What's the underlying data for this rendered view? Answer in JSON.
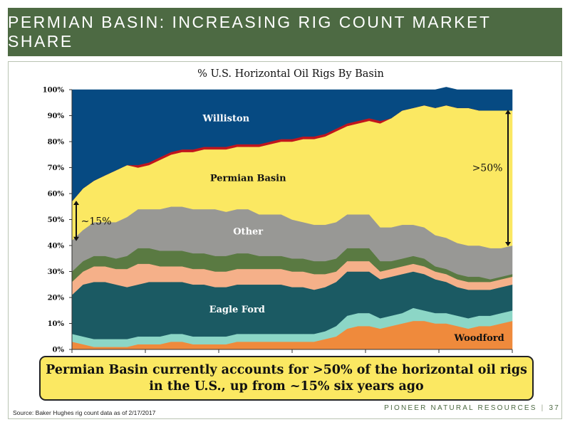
{
  "header": {
    "title": "PERMIAN BASIN: INCREASING RIG COUNT MARKET SHARE"
  },
  "chart_data": {
    "type": "area",
    "stacked": true,
    "title": "% U.S. Horizontal Oil Rigs By Basin",
    "xlabel": "",
    "ylabel": "",
    "ylim": [
      0,
      100
    ],
    "y_tick_labels": [
      "0%",
      "10%",
      "20%",
      "30%",
      "40%",
      "50%",
      "60%",
      "70%",
      "80%",
      "90%",
      "100%"
    ],
    "x_tick_count": 7,
    "x": [
      0,
      1,
      2,
      3,
      4,
      5,
      6,
      7,
      8,
      9,
      10,
      11,
      12,
      13,
      14,
      15,
      16,
      17,
      18,
      19,
      20,
      21,
      22,
      23,
      24,
      25,
      26,
      27,
      28,
      29,
      30,
      31,
      32,
      33,
      34,
      35,
      36,
      37,
      38,
      39,
      40
    ],
    "series": [
      {
        "name": "Woodford",
        "color": "#ef8a3c",
        "values": [
          3,
          2,
          1,
          1,
          1,
          1,
          2,
          2,
          2,
          3,
          3,
          2,
          2,
          2,
          2,
          3,
          3,
          3,
          3,
          3,
          3,
          3,
          3,
          4,
          5,
          8,
          9,
          9,
          8,
          9,
          10,
          11,
          11,
          10,
          10,
          9,
          8,
          9,
          9,
          10,
          11
        ]
      },
      {
        "name": "",
        "color": "#8cd6c6",
        "values": [
          3,
          3,
          3,
          3,
          3,
          3,
          3,
          3,
          3,
          3,
          3,
          3,
          3,
          3,
          3,
          3,
          3,
          3,
          3,
          3,
          3,
          3,
          3,
          3,
          4,
          5,
          5,
          5,
          4,
          4,
          4,
          5,
          4,
          4,
          4,
          4,
          4,
          4,
          4,
          4,
          4
        ]
      },
      {
        "name": "Eagle Ford",
        "color": "#1b5a63",
        "values": [
          15,
          20,
          22,
          22,
          21,
          20,
          20,
          21,
          21,
          20,
          20,
          20,
          20,
          19,
          19,
          19,
          19,
          19,
          19,
          19,
          18,
          18,
          17,
          17,
          17,
          17,
          16,
          16,
          15,
          15,
          15,
          14,
          14,
          13,
          12,
          11,
          11,
          10,
          10,
          10,
          10
        ]
      },
      {
        "name": "",
        "color": "#f5b089",
        "values": [
          5,
          5,
          6,
          6,
          6,
          7,
          8,
          7,
          6,
          6,
          6,
          6,
          6,
          6,
          6,
          6,
          6,
          6,
          6,
          6,
          6,
          6,
          6,
          5,
          4,
          4,
          4,
          4,
          3,
          3,
          3,
          3,
          3,
          3,
          3,
          3,
          3,
          3,
          3,
          3,
          3
        ]
      },
      {
        "name": "",
        "color": "#5a7a42",
        "values": [
          4,
          4,
          4,
          4,
          4,
          5,
          6,
          6,
          6,
          6,
          6,
          6,
          6,
          6,
          6,
          6,
          6,
          5,
          5,
          5,
          5,
          5,
          5,
          5,
          5,
          5,
          5,
          5,
          4,
          3,
          3,
          3,
          3,
          2,
          2,
          2,
          2,
          2,
          1,
          1,
          1
        ]
      },
      {
        "name": "Other",
        "color": "#989895",
        "values": [
          12,
          12,
          13,
          13,
          14,
          15,
          15,
          15,
          16,
          17,
          17,
          17,
          17,
          18,
          17,
          17,
          17,
          16,
          16,
          16,
          15,
          14,
          14,
          14,
          14,
          13,
          13,
          13,
          13,
          13,
          13,
          12,
          12,
          12,
          12,
          12,
          12,
          12,
          12,
          11,
          11
        ]
      },
      {
        "name": "Permian Basin",
        "color": "#fbe862",
        "values": [
          15,
          16,
          16,
          18,
          20,
          20,
          16,
          17,
          19,
          20,
          21,
          22,
          23,
          23,
          24,
          24,
          24,
          26,
          27,
          28,
          30,
          32,
          33,
          34,
          35,
          34,
          35,
          36,
          40,
          42,
          44,
          45,
          47,
          49,
          51,
          52,
          53,
          52,
          53,
          53,
          52
        ]
      },
      {
        "name": "",
        "color": "#c0151d",
        "values": [
          0,
          0,
          0,
          0,
          0,
          0,
          1,
          1,
          1,
          1,
          1,
          1,
          1,
          1,
          1,
          1,
          1,
          1,
          1,
          1,
          1,
          1,
          1,
          1,
          1,
          1,
          1,
          1,
          1,
          0,
          0,
          0,
          0,
          0,
          0,
          0,
          0,
          0,
          0,
          0,
          0
        ]
      },
      {
        "name": "Williston",
        "color": "#064a82",
        "values": [
          43,
          38,
          35,
          33,
          31,
          29,
          29,
          28,
          26,
          24,
          23,
          23,
          22,
          22,
          22,
          21,
          21,
          21,
          20,
          19,
          19,
          18,
          18,
          17,
          15,
          13,
          12,
          11,
          12,
          11,
          8,
          7,
          6,
          7,
          7,
          7,
          7,
          8,
          8,
          8,
          8
        ]
      }
    ],
    "annotations": [
      {
        "text": "~15%"
      },
      {
        "text": ">50%"
      }
    ]
  },
  "callout": {
    "line1": "Permian Basin currently accounts for >50% of the horizontal oil rigs",
    "line2": "in the U.S., up from ~15% six years ago"
  },
  "source": "Source: Baker Hughes rig count data as of 2/17/2017",
  "footer": {
    "company": "PIONEER NATURAL RESOURCES",
    "page": "37"
  }
}
